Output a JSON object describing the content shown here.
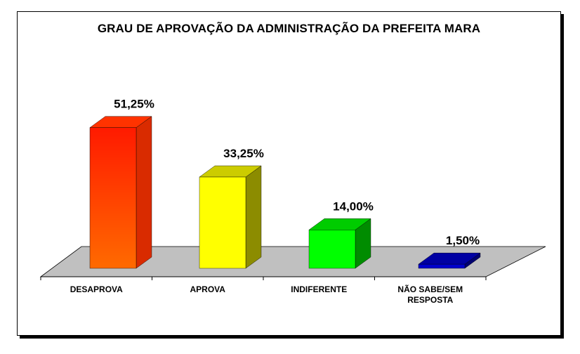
{
  "chart_data": {
    "type": "bar",
    "title": "GRAU DE APROVAÇÃO DA ADMINISTRAÇÃO DA PREFEITA MARA",
    "categories": [
      [
        "DESAPROVA"
      ],
      [
        "APROVA"
      ],
      [
        "INDIFERENTE"
      ],
      [
        "NÃO SABE/SEM",
        "RESPOSTA"
      ]
    ],
    "values": [
      51.25,
      33.25,
      14.0,
      1.5
    ],
    "value_labels": [
      "51,25%",
      "33,25%",
      "14,00%",
      "1,50%"
    ],
    "colors": [
      "#ff3300",
      "#ffff00",
      "#00ff00",
      "#0000cc"
    ],
    "ylim": [
      0,
      55
    ],
    "grid": false,
    "legend": "none",
    "style": "3d"
  }
}
